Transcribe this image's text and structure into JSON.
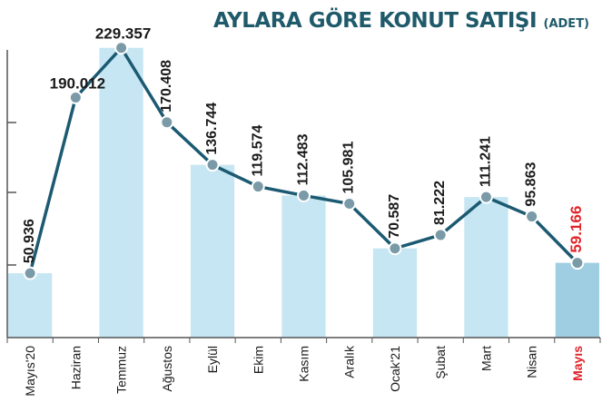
{
  "chart_data": {
    "type": "line",
    "title": "AYLARA GÖRE KONUT SATIŞI",
    "title_unit": "(ADET)",
    "categories": [
      "Mayıs'20",
      "Haziran",
      "Temmuz",
      "Ağustos",
      "Eylül",
      "Ekim",
      "Kasım",
      "Aralık",
      "Ocak'21",
      "Şubat",
      "Mart",
      "Nisan",
      "Mayıs"
    ],
    "value_labels": [
      "50.936",
      "190.012",
      "229.357",
      "170.408",
      "136.744",
      "119.574",
      "112.483",
      "105.981",
      "70.587",
      "81.222",
      "111.241",
      "95.863",
      "59.166"
    ],
    "values": [
      50936,
      190012,
      229357,
      170408,
      136744,
      119574,
      112483,
      105981,
      70587,
      81222,
      111241,
      95863,
      59166
    ],
    "highlight_index": 12,
    "ylim": [
      0,
      250000
    ],
    "grid": false,
    "colors": {
      "line": "#1c5a72",
      "marker_fill": "#7a9aa8",
      "marker_stroke": "#ffffff",
      "band_fill": "#c5e6f2",
      "band_highlight": "#9fcde2",
      "axis": "#555555",
      "label": "#1a1a1a",
      "highlight_label": "#e0242a",
      "title": "#1f5a6b"
    }
  }
}
